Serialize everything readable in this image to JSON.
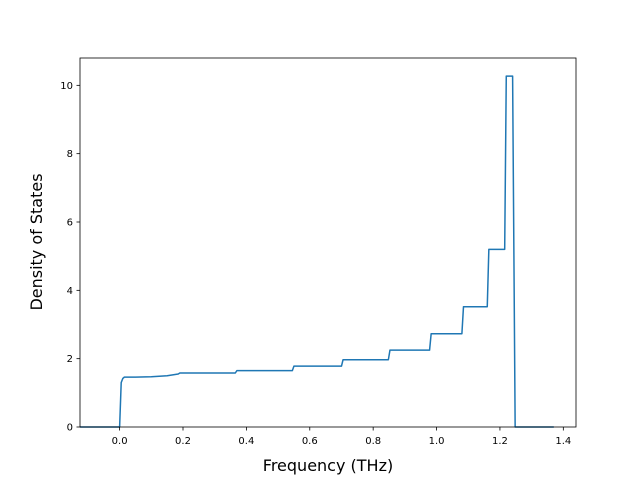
{
  "chart_data": {
    "type": "line",
    "title": "",
    "xlabel": "Frequency (THz)",
    "ylabel": "Density of States",
    "xlim": [
      -0.125,
      1.44
    ],
    "ylim": [
      0,
      10.8
    ],
    "grid": false,
    "legend": "none",
    "xticks": [
      0.0,
      0.2,
      0.4,
      0.6,
      0.8,
      1.0,
      1.2,
      1.4
    ],
    "xtick_labels": [
      "0.0",
      "0.2",
      "0.4",
      "0.6",
      "0.8",
      "1.0",
      "1.2",
      "1.4"
    ],
    "yticks": [
      0,
      2,
      4,
      6,
      8,
      10
    ],
    "ytick_labels": [
      "0",
      "2",
      "4",
      "6",
      "8",
      "10"
    ],
    "series": [
      {
        "color": "#1f77b4",
        "x": [
          -0.125,
          0.0,
          0.005,
          0.01,
          0.015,
          0.05,
          0.1,
          0.15,
          0.185,
          0.19,
          0.365,
          0.37,
          0.545,
          0.55,
          0.7,
          0.705,
          0.848,
          0.853,
          0.978,
          0.983,
          1.08,
          1.085,
          1.16,
          1.165,
          1.215,
          1.22,
          1.24,
          1.248,
          1.26,
          1.37
        ],
        "y": [
          0,
          0,
          1.3,
          1.42,
          1.46,
          1.46,
          1.47,
          1.5,
          1.55,
          1.58,
          1.58,
          1.65,
          1.65,
          1.78,
          1.78,
          1.97,
          1.97,
          2.25,
          2.25,
          2.73,
          2.73,
          3.52,
          3.52,
          5.2,
          5.2,
          10.27,
          10.27,
          0,
          0,
          0
        ]
      }
    ]
  }
}
